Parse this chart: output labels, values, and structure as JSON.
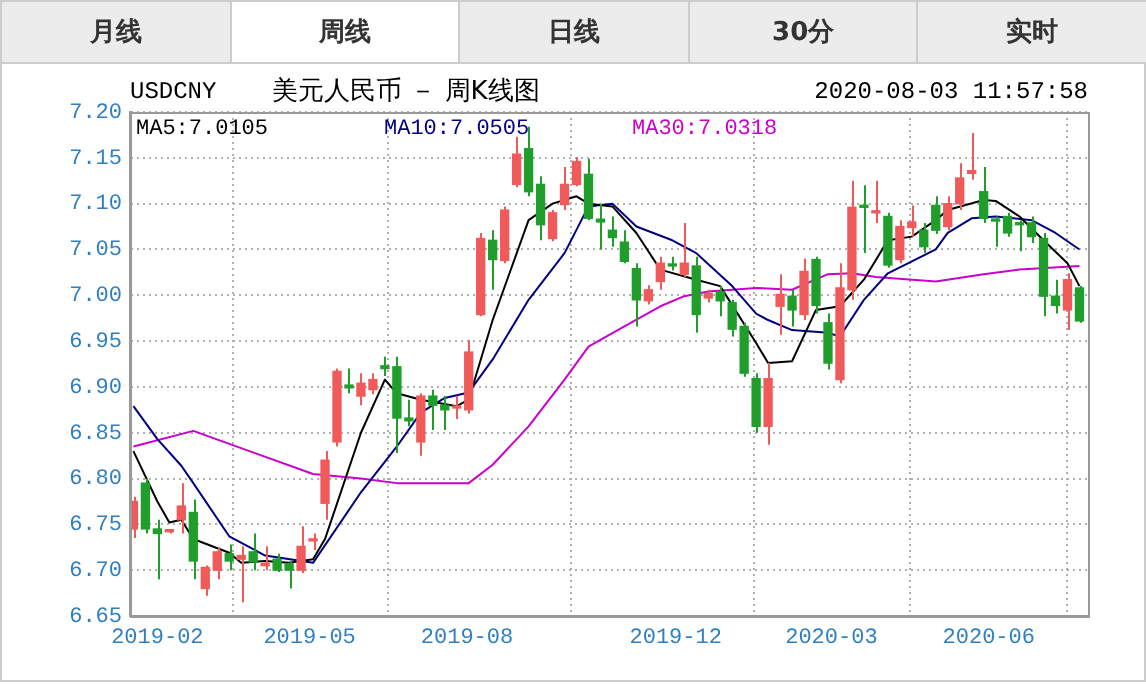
{
  "chart_data": [
    {
      "type": "other",
      "annotations": [
        "月线",
        "周线",
        "日线",
        "30分",
        "实时"
      ]
    },
    {
      "type": "candlestick",
      "title": "美元人民币 － 周K线图",
      "subtitle": "USDCNY",
      "annotations": [
        "2020-08-03 11:57:58"
      ],
      "x": [
        "2019-01-18",
        "2019-01-25",
        "2019-02-01",
        "2019-02-08",
        "2019-02-15",
        "2019-02-22",
        "2019-03-01",
        "2019-03-08",
        "2019-03-15",
        "2019-03-22",
        "2019-03-29",
        "2019-04-05",
        "2019-04-12",
        "2019-04-19",
        "2019-04-26",
        "2019-05-03",
        "2019-05-10",
        "2019-05-17",
        "2019-05-24",
        "2019-05-31",
        "2019-06-07",
        "2019-06-14",
        "2019-06-21",
        "2019-06-28",
        "2019-07-05",
        "2019-07-12",
        "2019-07-19",
        "2019-07-26",
        "2019-08-02",
        "2019-08-09",
        "2019-08-16",
        "2019-08-23",
        "2019-08-30",
        "2019-09-06",
        "2019-09-13",
        "2019-09-20",
        "2019-09-27",
        "2019-10-04",
        "2019-10-11",
        "2019-10-18",
        "2019-10-25",
        "2019-11-01",
        "2019-11-08",
        "2019-11-15",
        "2019-11-22",
        "2019-11-29",
        "2019-12-06",
        "2019-12-13",
        "2019-12-20",
        "2019-12-27",
        "2020-01-03",
        "2020-01-10",
        "2020-01-17",
        "2020-01-24",
        "2020-01-31",
        "2020-02-07",
        "2020-02-14",
        "2020-02-21",
        "2020-02-28",
        "2020-03-06",
        "2020-03-13",
        "2020-03-20",
        "2020-03-27",
        "2020-04-03",
        "2020-04-10",
        "2020-04-17",
        "2020-04-24",
        "2020-05-01",
        "2020-05-08",
        "2020-05-15",
        "2020-05-22",
        "2020-05-29",
        "2020-06-05",
        "2020-06-12",
        "2020-06-19",
        "2020-06-26",
        "2020-07-03",
        "2020-07-10",
        "2020-07-17",
        "2020-07-24"
      ],
      "ohlc": [
        [
          6.745,
          6.78,
          6.735,
          6.775
        ],
        [
          6.795,
          6.8,
          6.74,
          6.745
        ],
        [
          6.745,
          6.755,
          6.69,
          6.74
        ],
        [
          6.742,
          6.745,
          6.74,
          6.743
        ],
        [
          6.755,
          6.795,
          6.74,
          6.77
        ],
        [
          6.763,
          6.777,
          6.69,
          6.71
        ],
        [
          6.68,
          6.705,
          6.672,
          6.703
        ],
        [
          6.7,
          6.725,
          6.69,
          6.72
        ],
        [
          6.718,
          6.728,
          6.7,
          6.71
        ],
        [
          6.712,
          6.726,
          6.665,
          6.716
        ],
        [
          6.72,
          6.74,
          6.7,
          6.709
        ],
        [
          6.705,
          6.726,
          6.7,
          6.707
        ],
        [
          6.712,
          6.718,
          6.698,
          6.7
        ],
        [
          6.707,
          6.71,
          6.68,
          6.7
        ],
        [
          6.7,
          6.748,
          6.697,
          6.726
        ],
        [
          6.732,
          6.74,
          6.722,
          6.734
        ],
        [
          6.773,
          6.83,
          6.755,
          6.82
        ],
        [
          6.84,
          6.92,
          6.835,
          6.917
        ],
        [
          6.902,
          6.92,
          6.893,
          6.899
        ],
        [
          6.89,
          6.915,
          6.88,
          6.904
        ],
        [
          6.897,
          6.915,
          6.892,
          6.908
        ],
        [
          6.923,
          6.933,
          6.912,
          6.92
        ],
        [
          6.922,
          6.933,
          6.828,
          6.866
        ],
        [
          6.866,
          6.886,
          6.857,
          6.863
        ],
        [
          6.84,
          6.893,
          6.825,
          6.89
        ],
        [
          6.89,
          6.897,
          6.853,
          6.88
        ],
        [
          6.88,
          6.89,
          6.853,
          6.875
        ],
        [
          6.877,
          6.89,
          6.865,
          6.879
        ],
        [
          6.875,
          6.951,
          6.871,
          6.938
        ],
        [
          6.979,
          7.068,
          6.977,
          7.062
        ],
        [
          7.06,
          7.071,
          7.006,
          7.039
        ],
        [
          7.038,
          7.097,
          7.035,
          7.093
        ],
        [
          7.121,
          7.173,
          7.118,
          7.154
        ],
        [
          7.16,
          7.184,
          7.108,
          7.113
        ],
        [
          7.121,
          7.13,
          7.06,
          7.077
        ],
        [
          7.062,
          7.093,
          7.059,
          7.09
        ],
        [
          7.099,
          7.14,
          7.093,
          7.121
        ],
        [
          7.121,
          7.151,
          7.119,
          7.146
        ],
        [
          7.132,
          7.149,
          7.082,
          7.084
        ],
        [
          7.083,
          7.1,
          7.05,
          7.08
        ],
        [
          7.071,
          7.086,
          7.053,
          7.063
        ],
        [
          7.058,
          7.071,
          7.035,
          7.037
        ],
        [
          7.029,
          7.035,
          6.966,
          6.995
        ],
        [
          6.994,
          7.011,
          6.99,
          7.006
        ],
        [
          7.015,
          7.042,
          7.006,
          7.035
        ],
        [
          7.034,
          7.042,
          7.027,
          7.032
        ],
        [
          7.023,
          7.079,
          7.02,
          7.035
        ],
        [
          7.032,
          7.042,
          6.959,
          6.979
        ],
        [
          6.997,
          7.006,
          6.992,
          7.002
        ],
        [
          7.004,
          7.01,
          6.977,
          6.994
        ],
        [
          6.992,
          6.995,
          6.955,
          6.963
        ],
        [
          6.966,
          6.97,
          6.911,
          6.915
        ],
        [
          6.909,
          6.915,
          6.85,
          6.857
        ],
        [
          6.857,
          6.926,
          6.837,
          6.909
        ],
        [
          6.988,
          7.023,
          6.957,
          7.001
        ],
        [
          6.999,
          7.006,
          6.966,
          6.984
        ],
        [
          6.979,
          7.04,
          6.973,
          7.026
        ],
        [
          7.039,
          7.042,
          6.98,
          6.989
        ],
        [
          6.97,
          6.98,
          6.919,
          6.926
        ],
        [
          6.908,
          7.035,
          6.904,
          7.008
        ],
        [
          7.006,
          7.125,
          6.995,
          7.096
        ],
        [
          7.098,
          7.12,
          7.046,
          7.096
        ],
        [
          7.09,
          7.125,
          7.079,
          7.092
        ],
        [
          7.086,
          7.09,
          7.03,
          7.033
        ],
        [
          7.039,
          7.082,
          7.035,
          7.075
        ],
        [
          7.074,
          7.098,
          7.064,
          7.08
        ],
        [
          7.071,
          7.079,
          7.046,
          7.053
        ],
        [
          7.098,
          7.108,
          7.067,
          7.071
        ],
        [
          7.075,
          7.108,
          7.071,
          7.1
        ],
        [
          7.1,
          7.144,
          7.093,
          7.128
        ],
        [
          7.133,
          7.177,
          7.126,
          7.136
        ],
        [
          7.113,
          7.14,
          7.079,
          7.084
        ],
        [
          7.083,
          7.086,
          7.053,
          7.081
        ],
        [
          7.086,
          7.09,
          7.064,
          7.068
        ],
        [
          7.078,
          7.082,
          7.048,
          7.077
        ],
        [
          7.079,
          7.086,
          7.057,
          7.064
        ],
        [
          7.062,
          7.068,
          6.977,
          6.999
        ],
        [
          6.999,
          7.017,
          6.98,
          6.989
        ],
        [
          6.984,
          7.024,
          6.962,
          7.017
        ],
        [
          7.008,
          7.01,
          6.97,
          6.972
        ]
      ],
      "colors": [
        "#f05a5a",
        "#1f9e2c",
        "#1f9e2c",
        "#f05a5a",
        "#f05a5a",
        "#1f9e2c",
        "#f05a5a",
        "#f05a5a",
        "#1f9e2c",
        "#f05a5a",
        "#1f9e2c",
        "#f05a5a",
        "#1f9e2c",
        "#1f9e2c",
        "#f05a5a",
        "#f05a5a",
        "#f05a5a",
        "#f05a5a",
        "#1f9e2c",
        "#f05a5a",
        "#f05a5a",
        "#1f9e2c",
        "#1f9e2c",
        "#1f9e2c",
        "#f05a5a",
        "#1f9e2c",
        "#1f9e2c",
        "#f05a5a",
        "#f05a5a",
        "#f05a5a",
        "#1f9e2c",
        "#f05a5a",
        "#f05a5a",
        "#1f9e2c",
        "#1f9e2c",
        "#f05a5a",
        "#f05a5a",
        "#f05a5a",
        "#1f9e2c",
        "#1f9e2c",
        "#1f9e2c",
        "#1f9e2c",
        "#1f9e2c",
        "#f05a5a",
        "#f05a5a",
        "#1f9e2c",
        "#f05a5a",
        "#1f9e2c",
        "#f05a5a",
        "#1f9e2c",
        "#1f9e2c",
        "#1f9e2c",
        "#1f9e2c",
        "#f05a5a",
        "#f05a5a",
        "#1f9e2c",
        "#f05a5a",
        "#1f9e2c",
        "#1f9e2c",
        "#f05a5a",
        "#f05a5a",
        "#1f9e2c",
        "#f05a5a",
        "#1f9e2c",
        "#f05a5a",
        "#f05a5a",
        "#1f9e2c",
        "#1f9e2c",
        "#f05a5a",
        "#f05a5a",
        "#f05a5a",
        "#1f9e2c",
        "#1f9e2c",
        "#1f9e2c",
        "#1f9e2c",
        "#1f9e2c",
        "#1f9e2c",
        "#1f9e2c",
        "#f05a5a",
        "#1f9e2c"
      ],
      "series": [
        {
          "name": "MA5:7.0105",
          "type": "line",
          "color": "#000000",
          "x": [
            "2019-01-18",
            "2019-02-01",
            "2019-02-08",
            "2019-02-15",
            "2019-02-22",
            "2019-03-15",
            "2019-03-22",
            "2019-04-05",
            "2019-04-19",
            "2019-05-03",
            "2019-05-10",
            "2019-05-31",
            "2019-06-14",
            "2019-06-21",
            "2019-07-05",
            "2019-07-26",
            "2019-08-02",
            "2019-08-16",
            "2019-09-06",
            "2019-09-20",
            "2019-10-04",
            "2019-10-11",
            "2019-10-25",
            "2019-11-08",
            "2019-11-22",
            "2019-12-13",
            "2019-12-27",
            "2020-01-17",
            "2020-01-24",
            "2020-02-07",
            "2020-02-21",
            "2020-03-06",
            "2020-03-20",
            "2020-04-03",
            "2020-04-17",
            "2020-05-01",
            "2020-05-08",
            "2020-05-29",
            "2020-06-05",
            "2020-06-19",
            "2020-07-03",
            "2020-07-17",
            "2020-07-24"
          ],
          "values": [
            6.83,
            6.775,
            6.752,
            6.755,
            6.734,
            6.719,
            6.708,
            6.71,
            6.708,
            6.712,
            6.734,
            6.85,
            6.908,
            6.893,
            6.886,
            6.879,
            6.886,
            6.973,
            7.082,
            7.1,
            7.108,
            7.1,
            7.097,
            7.068,
            7.028,
            7.017,
            7.01,
            6.948,
            6.926,
            6.928,
            6.984,
            6.988,
            7.017,
            7.06,
            7.064,
            7.082,
            7.093,
            7.104,
            7.103,
            7.086,
            7.06,
            7.035,
            7.01
          ]
        },
        {
          "name": "MA10:7.0505",
          "type": "line",
          "color": "#000080",
          "x": [
            "2019-01-18",
            "2019-02-01",
            "2019-02-15",
            "2019-02-22",
            "2019-03-15",
            "2019-04-05",
            "2019-05-03",
            "2019-05-31",
            "2019-06-21",
            "2019-07-05",
            "2019-07-19",
            "2019-08-02",
            "2019-08-16",
            "2019-09-06",
            "2019-09-27",
            "2019-10-11",
            "2019-10-25",
            "2019-11-08",
            "2019-11-29",
            "2019-12-13",
            "2020-01-03",
            "2020-01-17",
            "2020-01-24",
            "2020-02-07",
            "2020-02-28",
            "2020-03-06",
            "2020-03-20",
            "2020-04-03",
            "2020-05-01",
            "2020-05-08",
            "2020-05-22",
            "2020-06-05",
            "2020-06-26",
            "2020-07-10",
            "2020-07-24"
          ],
          "values": [
            6.879,
            6.843,
            6.814,
            6.795,
            6.737,
            6.716,
            6.708,
            6.785,
            6.835,
            6.872,
            6.888,
            6.894,
            6.93,
            6.995,
            7.046,
            7.097,
            7.1,
            7.075,
            7.06,
            7.046,
            7.01,
            6.98,
            6.973,
            6.962,
            6.959,
            6.955,
            6.995,
            7.024,
            7.05,
            7.068,
            7.084,
            7.086,
            7.082,
            7.068,
            7.05
          ]
        },
        {
          "name": "MA30:7.0318",
          "type": "line",
          "color": "#cc00cc",
          "x": [
            "2019-01-18",
            "2019-02-22",
            "2019-05-03",
            "2019-05-31",
            "2019-06-21",
            "2019-08-02",
            "2019-08-16",
            "2019-09-06",
            "2019-09-27",
            "2019-10-11",
            "2019-11-01",
            "2019-11-22",
            "2019-12-06",
            "2019-12-20",
            "2020-01-17",
            "2020-02-07",
            "2020-02-28",
            "2020-03-13",
            "2020-03-27",
            "2020-05-01",
            "2020-05-29",
            "2020-06-19",
            "2020-07-24"
          ],
          "values": [
            6.835,
            6.852,
            6.805,
            6.8,
            6.795,
            6.795,
            6.815,
            6.857,
            6.908,
            6.944,
            6.966,
            6.988,
            6.999,
            7.004,
            7.008,
            7.006,
            7.023,
            7.024,
            7.02,
            7.015,
            7.023,
            7.028,
            7.032
          ]
        }
      ],
      "xlim": [
        "2019-01-16",
        "2020-07-29"
      ],
      "xticks": [
        "2019-02",
        "2019-05",
        "2019-08",
        "2019-12",
        "2020-03",
        "2020-06"
      ],
      "ylim": [
        6.65,
        7.2
      ],
      "yticks": [
        6.65,
        {
          "value": 6.7,
          "label": "6.70"
        },
        6.75,
        {
          "value": 6.8,
          "label": "6.80"
        },
        6.85,
        {
          "value": 6.9,
          "label": "6.90"
        },
        6.95,
        {
          "value": 7.0,
          "label": "7.00"
        },
        7.05,
        {
          "value": 7.1,
          "label": "7.10"
        },
        7.15,
        {
          "value": 7.2,
          "label": "7.20"
        }
      ],
      "grid": true,
      "legend": "top left"
    }
  ]
}
